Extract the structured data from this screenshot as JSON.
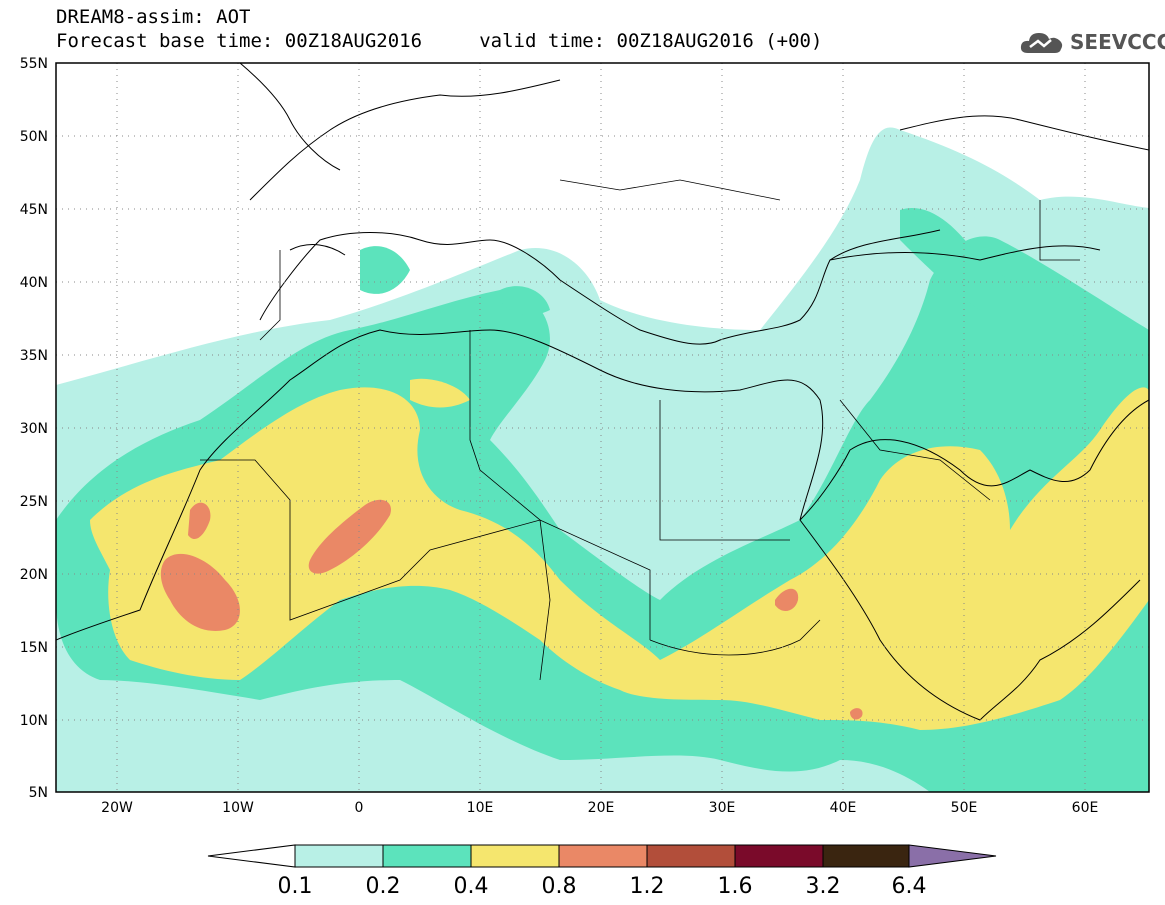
{
  "header": {
    "title_line1": "DREAM8-assim: AOT",
    "title_line2": "Forecast base time: 00Z18AUG2016     valid time: 00Z18AUG2016 (+00)"
  },
  "logo": {
    "text": "SEEVCCC",
    "icon": "cloud-icon"
  },
  "map": {
    "lon_range": [
      -25,
      65
    ],
    "lat_range": [
      5,
      55
    ],
    "grid": "dotted",
    "lat_ticks": [
      "5N",
      "10N",
      "15N",
      "20N",
      "25N",
      "30N",
      "35N",
      "40N",
      "45N",
      "50N",
      "55N"
    ],
    "lon_ticks": [
      "20W",
      "10W",
      "0",
      "10E",
      "20E",
      "30E",
      "40E",
      "50E",
      "60E"
    ]
  },
  "colorbar": {
    "levels": [
      "0.1",
      "0.2",
      "0.4",
      "0.8",
      "1.2",
      "1.6",
      "3.2",
      "6.4"
    ],
    "colors": [
      "#b8f0e6",
      "#5ce3bc",
      "#f5e66e",
      "#ea8866",
      "#b24e3a",
      "#7a0a2a",
      "#3a2510",
      "#8a6fa8"
    ],
    "low_extend_color": "#ffffff",
    "high_extend_color": "#8a6fa8"
  }
}
